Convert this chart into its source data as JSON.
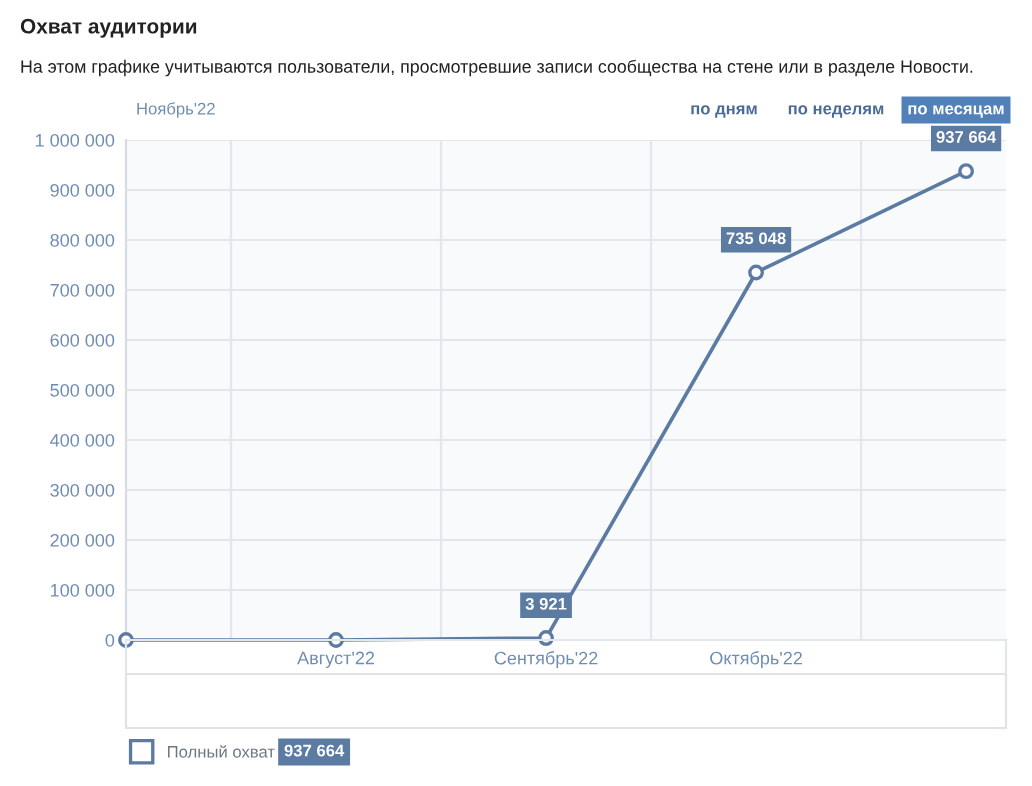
{
  "chart_data": {
    "type": "line",
    "title": "Охват аудитории",
    "subtitle": "На этом графике учитываются пользователи, просмотревшие записи сообщества на стене или в разделе Новости.",
    "categories": [
      null,
      "Август'22",
      "Сентябрь'22",
      "Октябрь'22",
      null
    ],
    "series": [
      {
        "name": "Полный охват",
        "color": "#5b7ba3",
        "values": [
          0,
          0,
          3921,
          735048,
          937664
        ],
        "value_labels": [
          null,
          null,
          "3 921",
          "735 048",
          "937 664"
        ]
      }
    ],
    "ylim": [
      0,
      1000000
    ],
    "yticks": [
      0,
      {
        "value": 100000,
        "label": "100 000"
      },
      {
        "value": 200000,
        "label": "200 000"
      },
      {
        "value": 300000,
        "label": "300 000"
      },
      {
        "value": 400000,
        "label": "400 000"
      },
      {
        "value": 500000,
        "label": "500 000"
      },
      {
        "value": 600000,
        "label": "600 000"
      },
      {
        "value": 700000,
        "label": "700 000"
      },
      {
        "value": 800000,
        "label": "800 000"
      },
      {
        "value": 900000,
        "label": "900 000"
      },
      {
        "value": 1000000,
        "label": "1 000 000"
      }
    ],
    "grid": true,
    "marker": "circle",
    "line_style": "solid",
    "legend": "bottom left",
    "annotations": [
      "Ноябрь'22",
      "по дням",
      "по неделям",
      "по месяцам",
      "937 664"
    ]
  }
}
